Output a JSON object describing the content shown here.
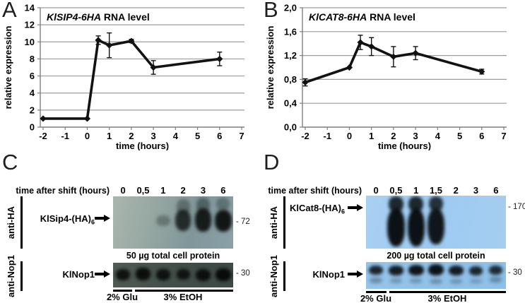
{
  "figure": {
    "panel_letters": [
      "A",
      "B",
      "C",
      "D"
    ]
  },
  "chart_data": [
    {
      "type": "line",
      "panel": "A",
      "title_gene": "KlSIP4-6HA",
      "title_rest": "RNA level",
      "xlabel": "time (hours)",
      "ylabel": "relative expression",
      "xlim": [
        -2,
        7
      ],
      "ylim": [
        0,
        14
      ],
      "xticks": [
        -2,
        -1,
        0,
        1,
        2,
        3,
        4,
        5,
        6,
        7
      ],
      "xtick_labels": [
        "-2",
        "-1",
        "0",
        "1",
        "2",
        "3",
        "4",
        "5",
        "6",
        "7"
      ],
      "yticks": [
        0,
        2,
        4,
        6,
        8,
        10,
        12,
        14
      ],
      "ytick_labels": [
        "0",
        "2",
        "4",
        "6",
        "8",
        "10",
        "12",
        "14"
      ],
      "grid": "horizontal",
      "legend_position": "none",
      "line_color": "#121212",
      "series": [
        {
          "name": "KlSIP4-6HA RNA level",
          "marker": "diamond",
          "x": [
            -2,
            0,
            0.5,
            1,
            2,
            3,
            6
          ],
          "y": [
            1.0,
            1.0,
            10.2,
            9.6,
            10.1,
            7.0,
            8.0
          ],
          "yerr": [
            0,
            0,
            0.5,
            1.45,
            0.2,
            0.8,
            0.8
          ]
        }
      ]
    },
    {
      "type": "line",
      "panel": "B",
      "title_gene": "KlCAT8-6HA",
      "title_rest": "RNA level",
      "xlabel": "time (hours)",
      "ylabel": "relative expression",
      "xlim": [
        -2,
        7
      ],
      "ylim": [
        0,
        2
      ],
      "xticks": [
        -2,
        -1,
        0,
        1,
        2,
        3,
        4,
        5,
        6,
        7
      ],
      "xtick_labels": [
        "-2",
        "-1",
        "0",
        "1",
        "2",
        "3",
        "4",
        "5",
        "6",
        "7"
      ],
      "yticks": [
        0,
        0.4,
        0.8,
        1.2,
        1.6,
        2.0
      ],
      "ytick_labels": [
        "0,0",
        "0,4",
        "0,8",
        "1,2",
        "1,6",
        "2,0"
      ],
      "grid": "horizontal",
      "legend_position": "none",
      "line_color": "#121212",
      "series": [
        {
          "name": "KlCAT8-6HA RNA level",
          "marker": "diamond",
          "x": [
            -2,
            0,
            0.5,
            1,
            2,
            3,
            6
          ],
          "y": [
            0.75,
            1.0,
            1.42,
            1.35,
            1.18,
            1.24,
            0.93
          ],
          "yerr": [
            0.06,
            0,
            0.12,
            0.15,
            0.17,
            0.11,
            0.04
          ]
        }
      ]
    }
  ],
  "blot_panels": [
    {
      "letter": "C",
      "header": "time after shift (hours)",
      "lanes": [
        "0",
        "0,5",
        "1",
        "2",
        "3",
        "6"
      ],
      "rows": [
        {
          "antibody": "anti-HA",
          "label": "KlSip4-(HA)",
          "label_sub": "6",
          "marker": "- 72",
          "caption": "50 µg total cell protein",
          "bg_colors": [
            "#aab5ad",
            "#96a7a2",
            "#7f969a",
            "#8ba1a9"
          ],
          "band_color": "#0d1210",
          "bands": [
            {
              "lane": 2,
              "y": 0.47,
              "h": 0.2,
              "w": 0.7,
              "o": 0.3
            },
            {
              "lane": 3,
              "y": 0.2,
              "h": 0.3,
              "w": 0.66,
              "o": 0.35
            },
            {
              "lane": 3,
              "y": 0.46,
              "h": 0.4,
              "w": 0.78,
              "o": 0.82
            },
            {
              "lane": 4,
              "y": 0.17,
              "h": 0.28,
              "w": 0.68,
              "o": 0.4
            },
            {
              "lane": 4,
              "y": 0.45,
              "h": 0.44,
              "w": 0.8,
              "o": 0.93
            },
            {
              "lane": 5,
              "y": 0.15,
              "h": 0.24,
              "w": 0.66,
              "o": 0.32
            },
            {
              "lane": 5,
              "y": 0.47,
              "h": 0.42,
              "w": 0.84,
              "o": 0.97
            }
          ]
        },
        {
          "antibody": "anti-Nop1",
          "label": "KlNop1",
          "label_sub": "",
          "marker": "- 30",
          "caption": "",
          "bg_colors": [
            "#505c54",
            "#424e48",
            "#3d4944"
          ],
          "band_color": "#060807",
          "bands": [
            {
              "lane": 0,
              "y": 0.48,
              "h": 0.46,
              "w": 0.7,
              "o": 0.88
            },
            {
              "lane": 1,
              "y": 0.45,
              "h": 0.5,
              "w": 0.76,
              "o": 0.92
            },
            {
              "lane": 2,
              "y": 0.48,
              "h": 0.46,
              "w": 0.72,
              "o": 0.88
            },
            {
              "lane": 3,
              "y": 0.48,
              "h": 0.44,
              "w": 0.68,
              "o": 0.85
            },
            {
              "lane": 4,
              "y": 0.5,
              "h": 0.48,
              "w": 0.74,
              "o": 0.9
            },
            {
              "lane": 5,
              "y": 0.48,
              "h": 0.52,
              "w": 0.78,
              "o": 0.96
            }
          ]
        }
      ],
      "conditions": [
        {
          "label": "2% Glu"
        },
        {
          "label": "3% EtOH"
        }
      ]
    },
    {
      "letter": "D",
      "header": "time after shift (hours)",
      "lanes": [
        "0",
        "0,5",
        "1",
        "1,5",
        "2",
        "3",
        "6"
      ],
      "rows": [
        {
          "antibody": "anti-HA",
          "label": "KlCat8-(HA)",
          "label_sub": "6",
          "marker": "- 170",
          "caption": "200 µg total cell protein",
          "bg_colors": [
            "#a9d0f2",
            "#9ecaf2",
            "#a5cdf0"
          ],
          "band_color": "#05090c",
          "bands": [
            {
              "lane": 1,
              "y": 0.16,
              "h": 0.3,
              "w": 0.72,
              "o": 0.85
            },
            {
              "lane": 1,
              "y": 0.6,
              "h": 0.72,
              "w": 0.86,
              "o": 0.96
            },
            {
              "lane": 2,
              "y": 0.16,
              "h": 0.3,
              "w": 0.74,
              "o": 0.85
            },
            {
              "lane": 2,
              "y": 0.6,
              "h": 0.72,
              "w": 0.84,
              "o": 0.96
            },
            {
              "lane": 3,
              "y": 0.16,
              "h": 0.28,
              "w": 0.7,
              "o": 0.8
            },
            {
              "lane": 3,
              "y": 0.58,
              "h": 0.68,
              "w": 0.82,
              "o": 0.93
            }
          ]
        },
        {
          "antibody": "anti-Nop1",
          "label": "KlNop1",
          "label_sub": "",
          "marker": "- 30",
          "caption": "",
          "bg_colors": [
            "#96c4ea",
            "#8dbfe8"
          ],
          "band_color": "#05090c",
          "bands": [
            {
              "lane": 0,
              "y": 0.3,
              "h": 0.34,
              "w": 0.7,
              "o": 0.85
            },
            {
              "lane": 0,
              "y": 0.68,
              "h": 0.2,
              "w": 0.62,
              "o": 0.3
            },
            {
              "lane": 1,
              "y": 0.32,
              "h": 0.36,
              "w": 0.74,
              "o": 0.9
            },
            {
              "lane": 1,
              "y": 0.7,
              "h": 0.18,
              "w": 0.6,
              "o": 0.25
            },
            {
              "lane": 2,
              "y": 0.3,
              "h": 0.4,
              "w": 0.78,
              "o": 0.94
            },
            {
              "lane": 2,
              "y": 0.7,
              "h": 0.18,
              "w": 0.6,
              "o": 0.25
            },
            {
              "lane": 3,
              "y": 0.3,
              "h": 0.42,
              "w": 0.78,
              "o": 0.95
            },
            {
              "lane": 3,
              "y": 0.72,
              "h": 0.18,
              "w": 0.62,
              "o": 0.28
            },
            {
              "lane": 4,
              "y": 0.32,
              "h": 0.38,
              "w": 0.74,
              "o": 0.9
            },
            {
              "lane": 4,
              "y": 0.72,
              "h": 0.18,
              "w": 0.6,
              "o": 0.25
            },
            {
              "lane": 5,
              "y": 0.32,
              "h": 0.34,
              "w": 0.68,
              "o": 0.85
            },
            {
              "lane": 5,
              "y": 0.7,
              "h": 0.16,
              "w": 0.58,
              "o": 0.22
            },
            {
              "lane": 6,
              "y": 0.3,
              "h": 0.34,
              "w": 0.68,
              "o": 0.82
            },
            {
              "lane": 6,
              "y": 0.66,
              "h": 0.2,
              "w": 0.6,
              "o": 0.3
            }
          ]
        }
      ],
      "conditions": [
        {
          "label": "2% Glu"
        },
        {
          "label": "3% EtOH"
        }
      ]
    }
  ]
}
